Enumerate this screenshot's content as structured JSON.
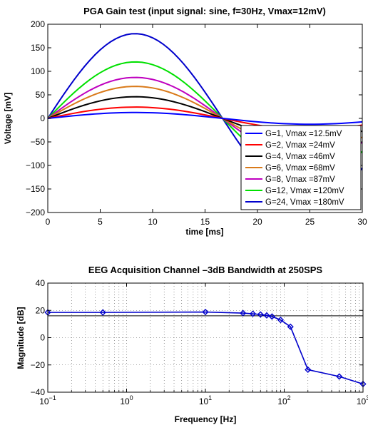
{
  "chart_data": [
    {
      "type": "line",
      "title": "PGA Gain test (input signal: sine, f=30Hz, Vmax=12mV)",
      "xlabel": "time [ms]",
      "ylabel": "Voltage [mV]",
      "xlim": [
        0,
        30
      ],
      "ylim": [
        -200,
        200
      ],
      "xticks": [
        0,
        5,
        10,
        15,
        20,
        25,
        30
      ],
      "yticks": [
        -200,
        -150,
        -100,
        -50,
        0,
        50,
        100,
        150,
        200
      ],
      "frequency_hz": 30,
      "grid": false,
      "legend_position": "bottom-right",
      "series": [
        {
          "name": "G=1, Vmax =12.5mV",
          "amplitude": 12.5,
          "color": "#0000ff"
        },
        {
          "name": "G=2, Vmax =24mV",
          "amplitude": 24,
          "color": "#ff0000"
        },
        {
          "name": "G=4, Vmax =46mV",
          "amplitude": 46,
          "color": "#000000"
        },
        {
          "name": "G=6, Vmax =68mV",
          "amplitude": 68,
          "color": "#d97a1a"
        },
        {
          "name": "G=8, Vmax =87mV",
          "amplitude": 87,
          "color": "#bf00bf"
        },
        {
          "name": "G=12, Vmax =120mV",
          "amplitude": 120,
          "color": "#00e000"
        },
        {
          "name": "G=24, Vmax =180mV",
          "amplitude": 180,
          "color": "#0000cc"
        }
      ]
    },
    {
      "type": "line",
      "title": "EEG Acquisition Channel –3dB Bandwidth at 250SPS",
      "xlabel": "Frequency [Hz]",
      "ylabel": "Magnitude [dB]",
      "xscale": "log",
      "xlim": [
        0.1,
        1000
      ],
      "ylim": [
        -40,
        40
      ],
      "xticks": [
        0.1,
        1,
        10,
        100,
        1000
      ],
      "xtick_exponents": [
        "−1",
        "0",
        "1",
        "2",
        "3"
      ],
      "yticks": [
        -40,
        -20,
        0,
        20,
        40
      ],
      "grid": true,
      "reference_line": 16,
      "color": "#0000cc",
      "x": [
        0.1,
        0.5,
        10,
        30,
        40,
        50,
        60,
        70,
        90,
        120,
        200,
        500,
        1000
      ],
      "y": [
        18.5,
        18.5,
        18.8,
        18,
        17.5,
        17,
        16.3,
        15.5,
        13,
        8,
        -23.5,
        -28.5,
        -34
      ]
    }
  ]
}
